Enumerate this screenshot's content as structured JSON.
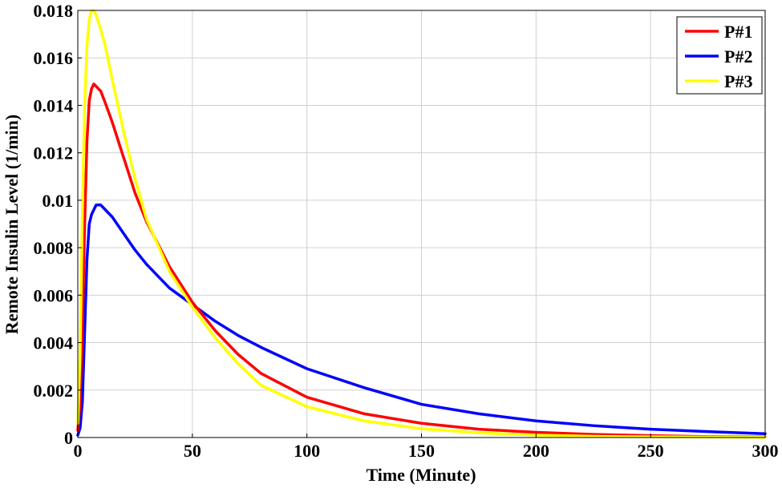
{
  "chart_data": {
    "type": "line",
    "title": "",
    "xlabel": "Time (Minute)",
    "ylabel": "Remote Insulin Level  (1/min)",
    "xlim": [
      0,
      300
    ],
    "ylim": [
      0,
      0.018
    ],
    "xticks": [
      0,
      50,
      100,
      150,
      200,
      250,
      300
    ],
    "xtick_labels": [
      "0",
      "50",
      "100",
      "150",
      "200",
      "250",
      "300"
    ],
    "yticks": [
      0,
      0.002,
      0.004,
      0.006,
      0.008,
      0.01,
      0.012,
      0.014,
      0.016,
      0.018
    ],
    "ytick_labels": [
      "0",
      "0.002",
      "0.004",
      "0.006",
      "0.008",
      "0.01",
      "0.012",
      "0.014",
      "0.016",
      "0.018"
    ],
    "grid": true,
    "legend_position": "top-right",
    "series": [
      {
        "name": "P#1",
        "color": "#ff0000",
        "x": [
          0,
          1,
          2,
          3,
          4,
          5,
          6,
          7,
          8,
          10,
          12,
          15,
          20,
          25,
          30,
          40,
          50,
          60,
          70,
          80,
          100,
          125,
          150,
          175,
          200,
          225,
          250,
          275,
          300
        ],
        "y": [
          0.0003,
          0.0015,
          0.0045,
          0.009,
          0.0125,
          0.0142,
          0.0147,
          0.0149,
          0.0148,
          0.0146,
          0.0141,
          0.0133,
          0.0118,
          0.0103,
          0.0091,
          0.0072,
          0.0057,
          0.0045,
          0.0035,
          0.0027,
          0.0017,
          0.001,
          0.0006,
          0.00035,
          0.00022,
          0.00013,
          8e-05,
          4e-05,
          2e-05
        ]
      },
      {
        "name": "P#2",
        "color": "#0000ff",
        "x": [
          0,
          1,
          2,
          3,
          4,
          5,
          6,
          7,
          8,
          9,
          10,
          12,
          15,
          20,
          25,
          30,
          40,
          50,
          60,
          70,
          80,
          100,
          125,
          150,
          175,
          200,
          225,
          250,
          275,
          300
        ],
        "y": [
          0.0001,
          0.0004,
          0.0015,
          0.0045,
          0.0075,
          0.009,
          0.0094,
          0.0096,
          0.0098,
          0.0098,
          0.0098,
          0.0096,
          0.0093,
          0.0086,
          0.0079,
          0.0073,
          0.0063,
          0.0056,
          0.0049,
          0.0043,
          0.0038,
          0.0029,
          0.0021,
          0.0014,
          0.001,
          0.0007,
          0.0005,
          0.00035,
          0.00025,
          0.00016
        ]
      },
      {
        "name": "P#3",
        "color": "#ffff00",
        "x": [
          0,
          1,
          2,
          3,
          4,
          5,
          6,
          7,
          8,
          10,
          12,
          15,
          20,
          25,
          30,
          40,
          50,
          60,
          70,
          80,
          100,
          125,
          150,
          175,
          200,
          225,
          250,
          275,
          300
        ],
        "y": [
          0.0006,
          0.0035,
          0.0095,
          0.014,
          0.0165,
          0.0176,
          0.018,
          0.018,
          0.0178,
          0.0172,
          0.0165,
          0.0151,
          0.0129,
          0.0109,
          0.0092,
          0.007,
          0.0055,
          0.0042,
          0.0031,
          0.0022,
          0.0013,
          0.0007,
          0.00037,
          0.0002,
          0.0001,
          5e-05,
          3e-05,
          2e-05,
          1e-05
        ]
      }
    ]
  }
}
